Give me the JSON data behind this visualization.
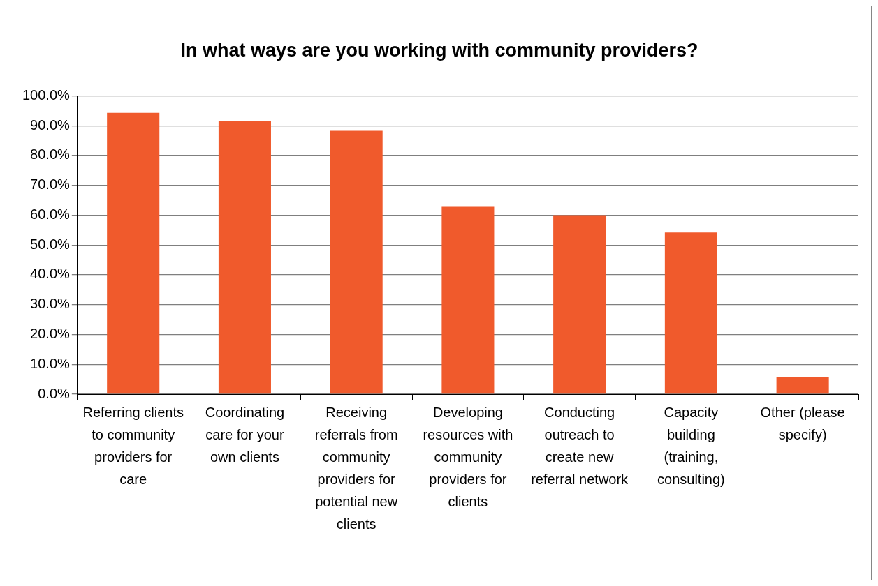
{
  "chart_data": {
    "type": "bar",
    "title": "In what ways are you working with community providers?",
    "categories": [
      "Referring clients to community providers for care",
      "Coordinating care for your own clients",
      "Receiving referrals from community providers for potential new clients",
      "Developing resources with community providers for clients",
      "Conducting outreach to create new referral network",
      "Capacity building (training, consulting)",
      "Other (please specify)"
    ],
    "values": [
      94.3,
      91.5,
      88.3,
      62.8,
      60.0,
      54.2,
      5.7
    ],
    "color": "#f05a2c",
    "ylim": [
      0,
      100
    ],
    "yticks": [
      {
        "value": 0,
        "label": "0.0%"
      },
      {
        "value": 10,
        "label": "10.0%"
      },
      {
        "value": 20,
        "label": "20.0%"
      },
      {
        "value": 30,
        "label": "30.0%"
      },
      {
        "value": 40,
        "label": "40.0%"
      },
      {
        "value": 50,
        "label": "50.0%"
      },
      {
        "value": 60,
        "label": "60.0%"
      },
      {
        "value": 70,
        "label": "70.0%"
      },
      {
        "value": 80,
        "label": "80.0%"
      },
      {
        "value": 90,
        "label": "90.0%"
      },
      {
        "value": 100,
        "label": "100.0%"
      }
    ],
    "grid": "y",
    "legend": false
  }
}
